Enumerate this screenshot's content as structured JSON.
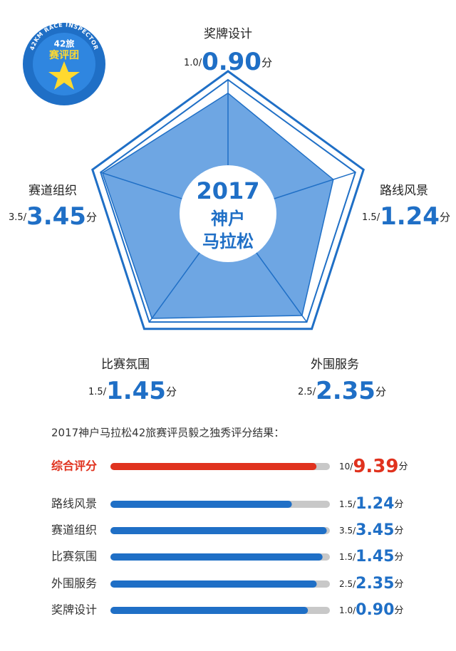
{
  "logo": {
    "ring": "42KM RACE INSPECTOR",
    "brand": "42旅",
    "team": "赛评团"
  },
  "chart_data": [
    {
      "type": "radar",
      "center_title": [
        "2017",
        "神户",
        "马拉松"
      ],
      "categories": [
        "奖牌设计",
        "路线风景",
        "外围服务",
        "比赛氛围",
        "赛道组织"
      ],
      "values": [
        0.9,
        1.24,
        2.35,
        1.45,
        3.45
      ],
      "value_labels": [
        "0.90",
        "1.24",
        "2.35",
        "1.45",
        "3.45"
      ],
      "max": [
        {
          "value": 1,
          "label": "1.0"
        },
        1.5,
        2.5,
        1.5,
        3.5
      ],
      "separator": "/",
      "unit": "分",
      "color": "#6ea6e3",
      "line_color": "#1f6fc6"
    },
    {
      "type": "bar",
      "title": "2017神户马拉松42旅赛评员毅之独秀评分结果：",
      "categories": [
        "综合评分",
        "路线风景",
        "赛道组织",
        "比赛氛围",
        "外围服务",
        "奖牌设计"
      ],
      "values": [
        9.39,
        1.24,
        3.45,
        1.45,
        2.35,
        0.9
      ],
      "value_labels": [
        "9.39",
        "1.24",
        "3.45",
        "1.45",
        "2.35",
        "0.90"
      ],
      "max": [
        10,
        1.5,
        3.5,
        1.5,
        2.5,
        {
          "value": 1,
          "label": "1.0"
        }
      ],
      "separator": "/",
      "unit": "分",
      "colors": [
        "#e0321e",
        "#1f6fc6",
        "#1f6fc6",
        "#1f6fc6",
        "#1f6fc6",
        "#1f6fc6"
      ],
      "track_color": "#c8c8c8"
    }
  ]
}
